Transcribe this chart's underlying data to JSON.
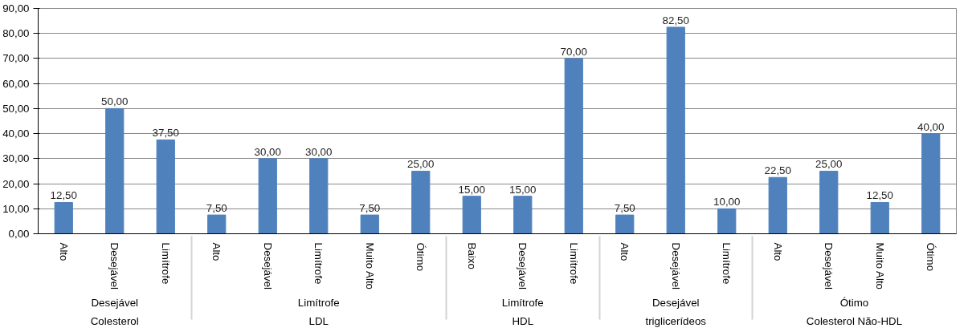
{
  "chart_data": {
    "type": "bar",
    "categories": [
      [
        "Colesterol",
        "Desejável",
        "Alto"
      ],
      [
        null,
        null,
        "Desejável"
      ],
      [
        null,
        null,
        "Limítrofe"
      ],
      [
        "LDL",
        "Limítrofe",
        "Alto"
      ],
      [
        null,
        null,
        "Desejável"
      ],
      [
        null,
        null,
        "Limítrofe"
      ],
      [
        null,
        null,
        "Muito Alto"
      ],
      [
        null,
        null,
        "Ótimo"
      ],
      [
        "HDL",
        "Limítrofe",
        "Baixo"
      ],
      [
        null,
        null,
        "Desejável"
      ],
      [
        null,
        null,
        "Limítrofe"
      ],
      [
        "triglicerídeos",
        "Desejável",
        "Alto"
      ],
      [
        null,
        null,
        "Desejável"
      ],
      [
        null,
        null,
        "Limítrofe"
      ],
      [
        "Colesterol Não-HDL",
        "Ótimo",
        "Alto"
      ],
      [
        null,
        null,
        "Desejável"
      ],
      [
        null,
        null,
        "Muito Alto"
      ],
      [
        null,
        null,
        "Ótimo"
      ]
    ],
    "values": [
      12.5,
      50,
      37.5,
      7.5,
      30,
      30,
      7.5,
      25,
      15,
      15,
      70,
      7.5,
      82.5,
      10,
      22.5,
      25,
      12.5,
      40
    ],
    "value_labels": [
      "12,50",
      "50,00",
      "37,50",
      "7,50",
      "30,00",
      "30,00",
      "7,50",
      "25,00",
      "15,00",
      "15,00",
      "70,00",
      "7,50",
      "82,50",
      "10,00",
      "22,50",
      "25,00",
      "12,50",
      "40,00"
    ],
    "color": "#4f81bd",
    "ylim": [
      0,
      90
    ],
    "yticks": [
      {
        "value": 0,
        "label": "0,00"
      },
      {
        "value": 10,
        "label": "10,00"
      },
      {
        "value": 20,
        "label": "20,00"
      },
      {
        "value": 30,
        "label": "30,00"
      },
      {
        "value": 40,
        "label": "40,00"
      },
      {
        "value": 50,
        "label": "50,00"
      },
      {
        "value": 60,
        "label": "60,00"
      },
      {
        "value": 70,
        "label": "70,00"
      },
      {
        "value": 80,
        "label": "80,00"
      },
      {
        "value": 90,
        "label": "90,00"
      }
    ],
    "grid": "y"
  }
}
